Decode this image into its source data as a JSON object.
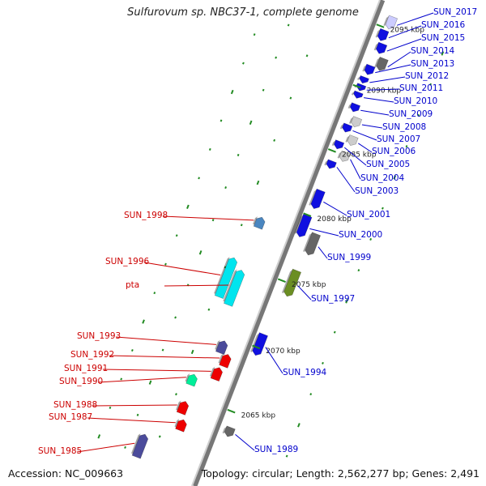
{
  "title": "Sulfurovum sp. NBC37-1, complete genome",
  "footer": {
    "accession": "Accession: NC_009663",
    "topology": "Topology: circular; Length: 2,562,277 bp; Genes: 2,491"
  },
  "ticks": [
    {
      "label": "2095 kbp"
    },
    {
      "label": "2090 kbp"
    },
    {
      "label": "2085 kbp"
    },
    {
      "label": "2080 kbp"
    },
    {
      "label": "2075 kbp"
    },
    {
      "label": "2070 kbp"
    },
    {
      "label": "2065 kbp"
    }
  ],
  "colors": {
    "backbone": "#888888",
    "forward_label": "#0000cc",
    "reverse_label": "#cc0000",
    "gc_dots": "#228b22"
  },
  "genes": [
    {
      "id": "SUN_2017",
      "strand": "+",
      "color": "#ccccff"
    },
    {
      "id": "SUN_2016",
      "strand": "+",
      "color": "#1010e0"
    },
    {
      "id": "SUN_2015",
      "strand": "+",
      "color": "#1010e0"
    },
    {
      "id": "SUN_2014",
      "strand": "+",
      "color": "#666666"
    },
    {
      "id": "SUN_2013",
      "strand": "+",
      "color": "#1010e0"
    },
    {
      "id": "SUN_2012",
      "strand": "+",
      "color": "#1010e0"
    },
    {
      "id": "SUN_2011",
      "strand": "+",
      "color": "#1010e0"
    },
    {
      "id": "SUN_2010",
      "strand": "+",
      "color": "#1010e0"
    },
    {
      "id": "SUN_2009",
      "strand": "+",
      "color": "#1010e0"
    },
    {
      "id": "SUN_2008",
      "strand": "+",
      "color": "#cccccc"
    },
    {
      "id": "SUN_2007",
      "strand": "+",
      "color": "#1010e0"
    },
    {
      "id": "SUN_2006",
      "strand": "+",
      "color": "#cccccc"
    },
    {
      "id": "SUN_2005",
      "strand": "+",
      "color": "#1010e0"
    },
    {
      "id": "SUN_2004",
      "strand": "+",
      "color": "#cccccc"
    },
    {
      "id": "SUN_2003",
      "strand": "+",
      "color": "#1010e0"
    },
    {
      "id": "SUN_2001",
      "strand": "+",
      "color": "#1010e0"
    },
    {
      "id": "SUN_2000",
      "strand": "+",
      "color": "#1010e0"
    },
    {
      "id": "SUN_1999",
      "strand": "+",
      "color": "#666666"
    },
    {
      "id": "SUN_1998",
      "strand": "-",
      "color": "#4a86c0"
    },
    {
      "id": "SUN_1997",
      "strand": "+",
      "color": "#6b8e23"
    },
    {
      "id": "SUN_1996",
      "strand": "-",
      "color": "#00e5ee"
    },
    {
      "id": "pta",
      "strand": "-",
      "color": "#00e5ee"
    },
    {
      "id": "SUN_1994",
      "strand": "+",
      "color": "#1010e0"
    },
    {
      "id": "SUN_1993",
      "strand": "-",
      "color": "#4b4b9b"
    },
    {
      "id": "SUN_1992",
      "strand": "-",
      "color": "#ee0000"
    },
    {
      "id": "SUN_1991",
      "strand": "-",
      "color": "#ee0000"
    },
    {
      "id": "SUN_1990",
      "strand": "-",
      "color": "#00ee99"
    },
    {
      "id": "SUN_1989",
      "strand": "+",
      "color": "#666666"
    },
    {
      "id": "SUN_1988",
      "strand": "-",
      "color": "#ee0000"
    },
    {
      "id": "SUN_1987",
      "strand": "-",
      "color": "#ee0000"
    },
    {
      "id": "SUN_1985",
      "strand": "-",
      "color": "#4b4b9b"
    }
  ]
}
